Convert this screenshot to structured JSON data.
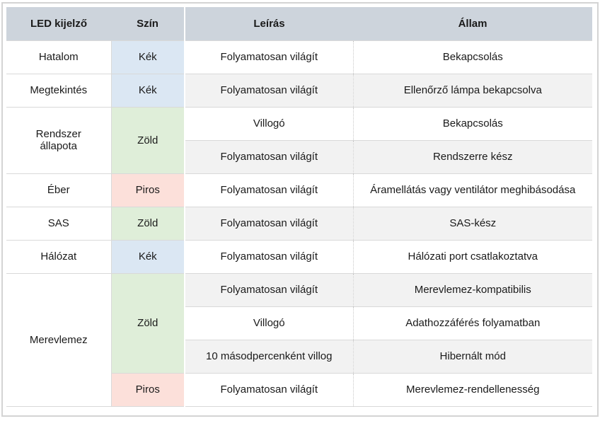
{
  "table": {
    "headers": [
      "LED kijelző",
      "Szín",
      "Leírás",
      "Állam"
    ],
    "colors": {
      "header_bg": "#cdd4dc",
      "blue": "#dbe7f3",
      "green": "#dfeed9",
      "red": "#fce0da",
      "band": "#f2f2f2"
    },
    "rows": [
      {
        "led": "Hatalom",
        "color": "Kék",
        "color_key": "blue",
        "desc": "Folyamatosan világít",
        "state": "Bekapcsolás"
      },
      {
        "led": "Megtekintés",
        "color": "Kék",
        "color_key": "blue",
        "desc": "Folyamatosan világít",
        "state": "Ellenőrző lámpa bekapcsolva"
      },
      {
        "led": "Rendszer\nállapota",
        "led_rowspan": 2,
        "color": "Zöld",
        "color_key": "green",
        "color_rowspan": 2,
        "desc": "Villogó",
        "state": "Bekapcsolás"
      },
      {
        "desc": "Folyamatosan világít",
        "state": "Rendszerre kész"
      },
      {
        "led": "Éber",
        "color": "Piros",
        "color_key": "red",
        "desc": "Folyamatosan világít",
        "state": "Áramellátás vagy ventilátor meghibásodása"
      },
      {
        "led": "SAS",
        "color": "Zöld",
        "color_key": "green",
        "desc": "Folyamatosan világít",
        "state": "SAS-kész"
      },
      {
        "led": "Hálózat",
        "color": "Kék",
        "color_key": "blue",
        "desc": "Folyamatosan világít",
        "state": "Hálózati port csatlakoztatva"
      },
      {
        "led": "Merevlemez",
        "led_rowspan": 4,
        "color": "Zöld",
        "color_key": "green",
        "color_rowspan": 3,
        "desc": "Folyamatosan világít",
        "state": "Merevlemez-kompatibilis"
      },
      {
        "desc": "Villogó",
        "state": "Adathozzáférés folyamatban"
      },
      {
        "desc": "10 másodpercenként villog",
        "state": "Hibernált mód"
      },
      {
        "color": "Piros",
        "color_key": "red",
        "desc": "Folyamatosan világít",
        "state": "Merevlemez-rendellenesség"
      }
    ]
  }
}
